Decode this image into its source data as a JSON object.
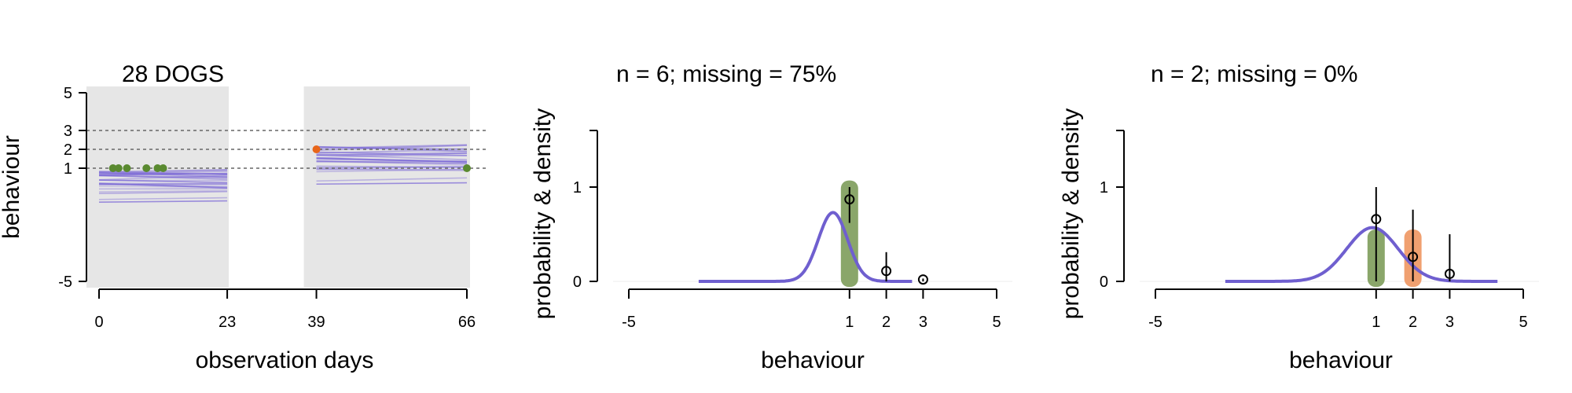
{
  "colors": {
    "panel_bg": "#e6e6e6",
    "trajectory": "#7b68d6",
    "density": "#6f5fcf",
    "highlight_green": "#8aa66a",
    "highlight_orange": "#f0a070",
    "point_green": "#5a8a30",
    "point_orange": "#e8661a"
  },
  "chart_data": [
    {
      "type": "line",
      "title": "28 DOGS",
      "xlabel": "observation days",
      "ylabel": "behaviour",
      "x_ticks": [
        "0",
        "23",
        "39",
        "66"
      ],
      "y_ticks": [
        "5",
        "3",
        "2",
        "1",
        "-5"
      ],
      "y_tick_values": [
        5,
        3,
        2,
        1,
        -5
      ],
      "xlim": [
        0,
        66
      ],
      "ylim": [
        -5,
        5
      ],
      "observation_windows": [
        [
          0,
          23
        ],
        [
          39,
          66
        ]
      ],
      "reference_lines": [
        1,
        2,
        3
      ],
      "trajectory_count": 28,
      "observed_points": [
        {
          "x": 2.5,
          "y": 1,
          "color": "green"
        },
        {
          "x": 3.5,
          "y": 1,
          "color": "green"
        },
        {
          "x": 5,
          "y": 1,
          "color": "green"
        },
        {
          "x": 8.5,
          "y": 1,
          "color": "green"
        },
        {
          "x": 10.5,
          "y": 1,
          "color": "green"
        },
        {
          "x": 11.5,
          "y": 1,
          "color": "green"
        },
        {
          "x": 39,
          "y": 2,
          "color": "orange"
        },
        {
          "x": 66,
          "y": 1,
          "color": "green"
        }
      ]
    },
    {
      "type": "line",
      "title": "n = 6; missing = 75%",
      "xlabel": "behaviour",
      "ylabel": "probability & density",
      "x_ticks": [
        "-5",
        "1",
        "2",
        "3",
        "5"
      ],
      "x_tick_values": [
        -5,
        1,
        2,
        3,
        5
      ],
      "y_ticks": [
        "0",
        "1"
      ],
      "xlim": [
        -5,
        5
      ],
      "ylim": [
        0,
        1.6
      ],
      "highlight": {
        "x": 1,
        "color": "green",
        "top": 1.07
      },
      "density": {
        "mean": 0.55,
        "sd": 0.4,
        "peak": 0.73,
        "from": -3.1,
        "to": 2.7
      },
      "points": [
        {
          "x": 1,
          "y": 0.87,
          "lo": 0.62,
          "hi": 1.0
        },
        {
          "x": 2,
          "y": 0.11,
          "lo": 0.0,
          "hi": 0.31
        },
        {
          "x": 3,
          "y": 0.02,
          "lo": 0.0,
          "hi": 0.03
        }
      ]
    },
    {
      "type": "line",
      "title": "n = 2; missing = 0%",
      "xlabel": "behaviour",
      "ylabel": "probability & density",
      "x_ticks": [
        "-5",
        "1",
        "2",
        "3",
        "5"
      ],
      "x_tick_values": [
        -5,
        1,
        2,
        3,
        5
      ],
      "y_ticks": [
        "0",
        "1"
      ],
      "xlim": [
        -5,
        5
      ],
      "ylim": [
        0,
        1.6
      ],
      "highlights": [
        {
          "x": 1,
          "color": "green",
          "top": 0.55
        },
        {
          "x": 2,
          "color": "orange",
          "top": 0.55
        }
      ],
      "density": {
        "mean": 0.9,
        "sd": 0.7,
        "peak": 0.57,
        "from": -3.1,
        "to": 4.3
      },
      "points": [
        {
          "x": 1,
          "y": 0.66,
          "lo": 0.0,
          "hi": 1.0
        },
        {
          "x": 2,
          "y": 0.26,
          "lo": 0.0,
          "hi": 0.76
        },
        {
          "x": 3,
          "y": 0.08,
          "lo": 0.0,
          "hi": 0.5
        }
      ]
    }
  ]
}
